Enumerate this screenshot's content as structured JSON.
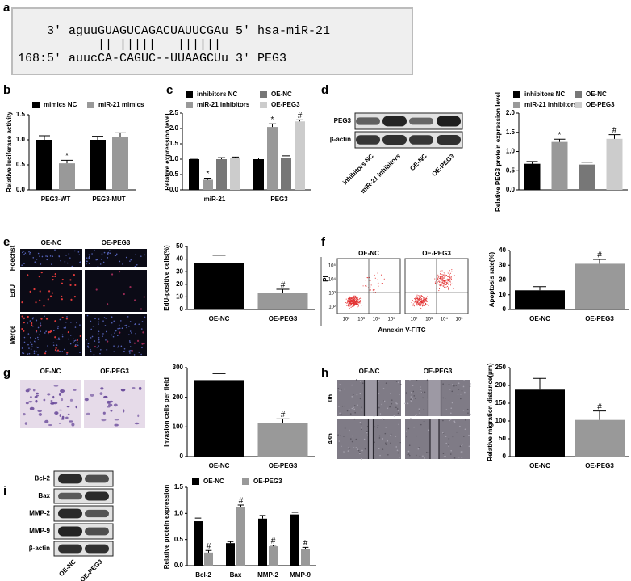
{
  "panel_labels": [
    "a",
    "b",
    "c",
    "d",
    "e",
    "f",
    "g",
    "h",
    "i"
  ],
  "alignment": {
    "line1": "3' aguuGUAGUCAGACUAUUCGAu 5' hsa-miR-21",
    "pairs": "|| |||||   ||||||",
    "line2": "168:5' auucCA-CAGUC--UUAAGCUu 3' PEG3"
  },
  "blot_d": {
    "rows": [
      "PEG3",
      "β-actin"
    ],
    "lanes": [
      "inhibitors NC",
      "miR-21 inhibitors",
      "OE-NC",
      "OE-PEG3"
    ]
  },
  "edu_images": {
    "columns": [
      "OE-NC",
      "OE-PEG3"
    ],
    "rows": [
      "Hoechst",
      "EdU",
      "Merge"
    ]
  },
  "flow_plots": {
    "columns": [
      "OE-NC",
      "OE-PEG3"
    ],
    "y_label": "PI",
    "x_label": "Annexin V-FITC",
    "ticks": [
      "10²",
      "10³",
      "10⁴",
      "10⁵"
    ]
  },
  "invasion_images": {
    "columns": [
      "OE-NC",
      "OE-PEG3"
    ]
  },
  "wound_images": {
    "columns": [
      "OE-NC",
      "OE-PEG3"
    ],
    "rows": [
      "0h",
      "48h"
    ]
  },
  "blot_i": {
    "rows": [
      "Bcl-2",
      "Bax",
      "MMP-2",
      "MMP-9",
      "β-actin"
    ],
    "lanes": [
      "OE-NC",
      "OE-PEG3"
    ]
  },
  "chart_data": [
    {
      "type": "bar",
      "y_label": "Relative luciferase activity",
      "categories": [
        "PEG3-WT",
        "PEG3-MUT"
      ],
      "series": [
        {
          "name": "mimics NC",
          "color": "#000000",
          "values": [
            1.0,
            1.0
          ],
          "errors": [
            0.08,
            0.07
          ],
          "annotations": [
            null,
            null
          ]
        },
        {
          "name": "miR-21 mimics",
          "color": "#999999",
          "values": [
            0.53,
            1.05
          ],
          "errors": [
            0.06,
            0.09
          ],
          "annotations": [
            "*",
            null
          ]
        }
      ],
      "ylim": [
        0,
        1.5
      ],
      "yticks": [
        {
          "value": 0,
          "label": "0.0"
        },
        0.5,
        {
          "value": 1,
          "label": "1.0"
        },
        1.5
      ]
    },
    {
      "type": "bar",
      "y_label": "Relative expression level",
      "categories": [
        "miR-21",
        "PEG3"
      ],
      "series": [
        {
          "name": "inhibitors NC",
          "color": "#000000",
          "values": [
            1.0,
            1.0
          ],
          "errors": [
            0.03,
            0.04
          ],
          "annotations": [
            null,
            null
          ]
        },
        {
          "name": "miR-21 inhibitors",
          "color": "#999999",
          "values": [
            0.33,
            2.05
          ],
          "errors": [
            0.05,
            0.1
          ],
          "annotations": [
            "*",
            "*"
          ]
        },
        {
          "name": "OE-NC",
          "color": "#777777",
          "values": [
            1.0,
            1.05
          ],
          "errors": [
            0.05,
            0.06
          ],
          "annotations": [
            null,
            null
          ]
        },
        {
          "name": "OE-PEG3",
          "color": "#cccccc",
          "values": [
            1.03,
            2.23
          ],
          "errors": [
            0.04,
            0.05
          ],
          "annotations": [
            null,
            "#"
          ]
        }
      ],
      "ylim": [
        0,
        2.5
      ],
      "yticks": [
        {
          "value": 0,
          "label": "0.0"
        },
        0.5,
        {
          "value": 1,
          "label": "1.0"
        },
        1.5,
        {
          "value": 2,
          "label": "2.0"
        },
        2.5
      ]
    },
    {
      "type": "bar",
      "y_label": "Relative PEG3 protein expression level",
      "categories": [
        null
      ],
      "series": [
        {
          "name": "inhibitors NC",
          "color": "#000000",
          "values": [
            0.68
          ],
          "errors": [
            0.06
          ],
          "annotations": [
            null
          ]
        },
        {
          "name": "miR-21 inhibitors",
          "color": "#999999",
          "values": [
            1.25
          ],
          "errors": [
            0.07
          ],
          "annotations": [
            "*"
          ]
        },
        {
          "name": "OE-NC",
          "color": "#777777",
          "values": [
            0.66
          ],
          "errors": [
            0.06
          ],
          "annotations": [
            null
          ]
        },
        {
          "name": "OE-PEG3",
          "color": "#cccccc",
          "values": [
            1.33
          ],
          "errors": [
            0.11
          ],
          "annotations": [
            "#"
          ]
        }
      ],
      "ylim": [
        0,
        2
      ],
      "yticks": [
        {
          "value": 0,
          "label": "0.0"
        },
        0.5,
        {
          "value": 1,
          "label": "1.0"
        },
        1.5,
        {
          "value": 2,
          "label": "2.0"
        }
      ]
    },
    {
      "type": "bar",
      "y_label": "EdU-positive cells(%)",
      "categories": [
        "OE-NC",
        "OE-PEG3"
      ],
      "values": [
        37,
        13
      ],
      "errors": [
        6,
        3
      ],
      "annotations": [
        null,
        "#"
      ],
      "colors": [
        "#000000",
        "#999999"
      ],
      "ylim": [
        0,
        50
      ],
      "yticks": [
        0,
        10,
        20,
        30,
        40,
        50
      ]
    },
    {
      "type": "bar",
      "y_label": "Apoptosis rate(%)",
      "categories": [
        "OE-NC",
        "OE-PEG3"
      ],
      "values": [
        13,
        31
      ],
      "errors": [
        2.5,
        3
      ],
      "annotations": [
        null,
        "#"
      ],
      "colors": [
        "#000000",
        "#999999"
      ],
      "ylim": [
        0,
        40
      ],
      "yticks": [
        0,
        10,
        20,
        30,
        40
      ]
    },
    {
      "type": "bar",
      "y_label": "Invasion cells per field",
      "categories": [
        "OE-NC",
        "OE-PEG3"
      ],
      "values": [
        258,
        112
      ],
      "errors": [
        22,
        15
      ],
      "annotations": [
        null,
        "#"
      ],
      "colors": [
        "#000000",
        "#999999"
      ],
      "ylim": [
        0,
        300
      ],
      "yticks": [
        0,
        100,
        200,
        300
      ]
    },
    {
      "type": "bar",
      "y_label": "Relative migration distance(μm)",
      "categories": [
        "OE-NC",
        "OE-PEG3"
      ],
      "values": [
        188,
        103
      ],
      "errors": [
        32,
        25
      ],
      "annotations": [
        null,
        "#"
      ],
      "colors": [
        "#000000",
        "#999999"
      ],
      "ylim": [
        0,
        250
      ],
      "yticks": [
        0,
        50,
        100,
        150,
        200,
        250
      ]
    },
    {
      "type": "bar",
      "y_label": "Relative protein expression",
      "categories": [
        "Bcl-2",
        "Bax",
        "MMP-2",
        "MMP-9"
      ],
      "series": [
        {
          "name": "OE-NC",
          "color": "#000000",
          "values": [
            0.85,
            0.43,
            0.9,
            0.98
          ],
          "errors": [
            0.06,
            0.03,
            0.06,
            0.04
          ],
          "annotations": [
            null,
            null,
            null,
            null
          ]
        },
        {
          "name": "OE-PEG3",
          "color": "#999999",
          "values": [
            0.25,
            1.12,
            0.37,
            0.32
          ],
          "errors": [
            0.04,
            0.04,
            0.02,
            0.03
          ],
          "annotations": [
            "#",
            "#",
            "#",
            "#"
          ]
        }
      ],
      "ylim": [
        0,
        1.5
      ],
      "yticks": [
        {
          "value": 0,
          "label": "0.0"
        },
        0.5,
        {
          "value": 1,
          "label": "1.0"
        },
        1.5
      ]
    }
  ]
}
